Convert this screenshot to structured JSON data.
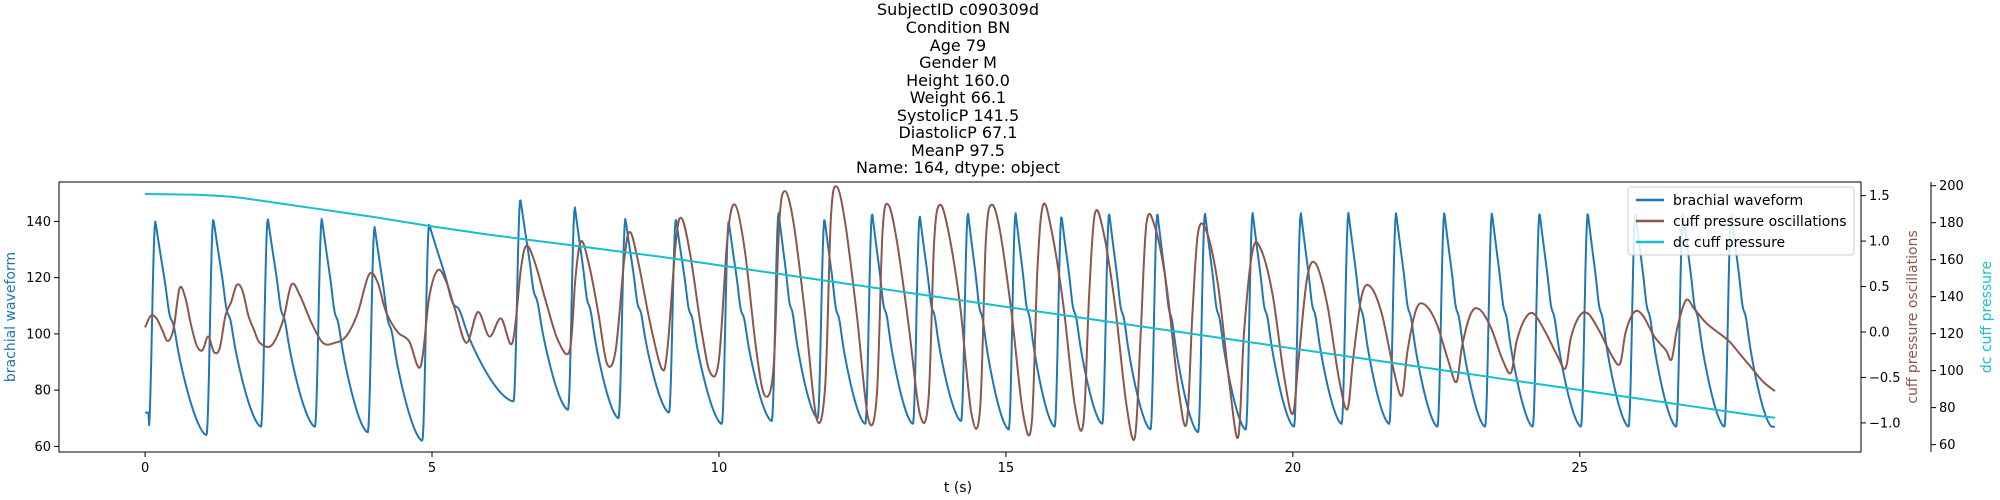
{
  "chart_data": {
    "type": "line",
    "title_lines": [
      "SubjectID     c090309d",
      "Condition            BN",
      "Age                  79",
      "Gender                M",
      "Height            160.0",
      "Weight             66.1",
      "SystolicP         141.5",
      "DiastolicP         67.1",
      "MeanP              97.5",
      "Name: 164, dtype: object"
    ],
    "xlabel": "t (s)",
    "xlim": [
      -1.5,
      29.9
    ],
    "xticks": [
      0,
      5,
      10,
      15,
      20,
      25
    ],
    "grid": false,
    "legend_position": "top-right",
    "colors": {
      "brachial": "#1f77b4",
      "cuff_osc": "#8c564b",
      "dc_cuff": "#17becf"
    },
    "axes": [
      {
        "id": "left",
        "label": "brachial waveform",
        "ylim": [
          58,
          154
        ],
        "ticks": [
          60,
          80,
          100,
          120,
          140
        ],
        "color": "#1f77b4"
      },
      {
        "id": "right1",
        "label": "cuff pressure oscillations",
        "ylim": [
          -1.32,
          1.65
        ],
        "ticks": [
          -1.0,
          -0.5,
          0.0,
          0.5,
          1.0,
          1.5
        ],
        "color": "#8c564b"
      },
      {
        "id": "right2",
        "label": "dc cuff pressure",
        "ylim": [
          56,
          202
        ],
        "ticks": [
          60,
          80,
          100,
          120,
          140,
          160,
          180,
          200
        ],
        "color": "#17becf"
      }
    ],
    "series": [
      {
        "name": "brachial waveform",
        "axis": "left",
        "color": "#1f77b4",
        "duration": 28.4,
        "beats": [
          {
            "t": 0.06,
            "peak": 140,
            "trough": 66
          },
          {
            "t": 1.07,
            "peak": 141,
            "trough": 64
          },
          {
            "t": 2.02,
            "peak": 141,
            "trough": 67
          },
          {
            "t": 2.96,
            "peak": 141,
            "trough": 67
          },
          {
            "t": 3.88,
            "peak": 138,
            "trough": 65
          },
          {
            "t": 4.83,
            "peak": 139,
            "trough": 62
          },
          {
            "t": 6.42,
            "peak": 148,
            "trough": 76
          },
          {
            "t": 7.37,
            "peak": 145,
            "trough": 73
          },
          {
            "t": 8.25,
            "peak": 141,
            "trough": 70
          },
          {
            "t": 9.13,
            "peak": 141,
            "trough": 72
          },
          {
            "t": 10.05,
            "peak": 140,
            "trough": 68
          },
          {
            "t": 10.92,
            "peak": 143,
            "trough": 69
          },
          {
            "t": 11.72,
            "peak": 141,
            "trough": 70
          },
          {
            "t": 12.55,
            "peak": 143,
            "trough": 68
          },
          {
            "t": 13.38,
            "peak": 142,
            "trough": 68
          },
          {
            "t": 14.22,
            "peak": 143,
            "trough": 69
          },
          {
            "t": 15.05,
            "peak": 143,
            "trough": 66
          },
          {
            "t": 15.85,
            "peak": 142,
            "trough": 67
          },
          {
            "t": 16.68,
            "peak": 143,
            "trough": 68
          },
          {
            "t": 17.52,
            "peak": 143,
            "trough": 66
          },
          {
            "t": 18.35,
            "peak": 143,
            "trough": 65
          },
          {
            "t": 19.18,
            "peak": 143,
            "trough": 66
          },
          {
            "t": 20.02,
            "peak": 143,
            "trough": 67
          },
          {
            "t": 20.85,
            "peak": 143,
            "trough": 68
          },
          {
            "t": 21.68,
            "peak": 143,
            "trough": 68
          },
          {
            "t": 22.52,
            "peak": 143,
            "trough": 67
          },
          {
            "t": 23.35,
            "peak": 143,
            "trough": 67
          },
          {
            "t": 24.18,
            "peak": 143,
            "trough": 67
          },
          {
            "t": 25.02,
            "peak": 143,
            "trough": 67
          },
          {
            "t": 25.85,
            "peak": 143,
            "trough": 67
          },
          {
            "t": 26.68,
            "peak": 143,
            "trough": 67
          },
          {
            "t": 27.52,
            "peak": 143,
            "trough": 67
          }
        ]
      },
      {
        "name": "cuff pressure oscillations",
        "axis": "right1",
        "color": "#8c564b",
        "points": [
          [
            0.0,
            0.05
          ],
          [
            0.1,
            0.18
          ],
          [
            0.2,
            0.15
          ],
          [
            0.3,
            0.02
          ],
          [
            0.4,
            -0.1
          ],
          [
            0.5,
            0.05
          ],
          [
            0.6,
            0.48
          ],
          [
            0.7,
            0.38
          ],
          [
            0.8,
            0.08
          ],
          [
            0.9,
            -0.15
          ],
          [
            1.0,
            -0.2
          ],
          [
            1.1,
            -0.05
          ],
          [
            1.2,
            -0.22
          ],
          [
            1.3,
            -0.18
          ],
          [
            1.4,
            0.18
          ],
          [
            1.5,
            0.33
          ],
          [
            1.6,
            0.52
          ],
          [
            1.7,
            0.45
          ],
          [
            1.8,
            0.18
          ],
          [
            1.9,
            0.02
          ],
          [
            2.0,
            -0.12
          ],
          [
            2.2,
            -0.15
          ],
          [
            2.4,
            0.12
          ],
          [
            2.55,
            0.52
          ],
          [
            2.7,
            0.4
          ],
          [
            2.9,
            0.1
          ],
          [
            3.1,
            -0.12
          ],
          [
            3.3,
            -0.12
          ],
          [
            3.5,
            -0.05
          ],
          [
            3.7,
            0.2
          ],
          [
            3.9,
            0.63
          ],
          [
            4.05,
            0.55
          ],
          [
            4.2,
            0.22
          ],
          [
            4.4,
            0.0
          ],
          [
            4.6,
            -0.1
          ],
          [
            4.8,
            -0.38
          ],
          [
            4.95,
            0.38
          ],
          [
            5.1,
            0.68
          ],
          [
            5.25,
            0.55
          ],
          [
            5.4,
            0.25
          ],
          [
            5.6,
            -0.12
          ],
          [
            5.8,
            0.22
          ],
          [
            6.0,
            -0.05
          ],
          [
            6.2,
            0.15
          ],
          [
            6.4,
            -0.12
          ],
          [
            6.55,
            0.7
          ],
          [
            6.65,
            0.95
          ],
          [
            6.8,
            0.75
          ],
          [
            7.0,
            0.3
          ],
          [
            7.2,
            -0.1
          ],
          [
            7.4,
            -0.2
          ],
          [
            7.5,
            0.6
          ],
          [
            7.6,
            1.0
          ],
          [
            7.75,
            0.7
          ],
          [
            7.9,
            0.2
          ],
          [
            8.05,
            -0.35
          ],
          [
            8.2,
            -0.2
          ],
          [
            8.35,
            0.8
          ],
          [
            8.45,
            1.1
          ],
          [
            8.6,
            0.75
          ],
          [
            8.8,
            0.1
          ],
          [
            9.0,
            -0.4
          ],
          [
            9.1,
            -0.2
          ],
          [
            9.25,
            1.0
          ],
          [
            9.35,
            1.25
          ],
          [
            9.5,
            0.85
          ],
          [
            9.7,
            0.0
          ],
          [
            9.85,
            -0.45
          ],
          [
            10.0,
            -0.3
          ],
          [
            10.15,
            1.05
          ],
          [
            10.28,
            1.4
          ],
          [
            10.45,
            0.9
          ],
          [
            10.65,
            -0.2
          ],
          [
            10.8,
            -0.7
          ],
          [
            10.95,
            -0.4
          ],
          [
            11.05,
            1.2
          ],
          [
            11.15,
            1.55
          ],
          [
            11.3,
            1.2
          ],
          [
            11.5,
            0.2
          ],
          [
            11.7,
            -0.95
          ],
          [
            11.85,
            -0.6
          ],
          [
            11.95,
            1.25
          ],
          [
            12.05,
            1.6
          ],
          [
            12.2,
            1.2
          ],
          [
            12.4,
            0.2
          ],
          [
            12.6,
            -0.95
          ],
          [
            12.75,
            -0.7
          ],
          [
            12.85,
            1.1
          ],
          [
            12.95,
            1.4
          ],
          [
            13.1,
            1.0
          ],
          [
            13.3,
            0.1
          ],
          [
            13.5,
            -0.9
          ],
          [
            13.65,
            -0.75
          ],
          [
            13.75,
            1.0
          ],
          [
            13.85,
            1.4
          ],
          [
            14.0,
            1.1
          ],
          [
            14.2,
            0.3
          ],
          [
            14.4,
            -0.9
          ],
          [
            14.55,
            -0.85
          ],
          [
            14.65,
            1.0
          ],
          [
            14.75,
            1.4
          ],
          [
            14.9,
            1.1
          ],
          [
            15.1,
            0.2
          ],
          [
            15.3,
            -0.9
          ],
          [
            15.45,
            -1.0
          ],
          [
            15.55,
            0.7
          ],
          [
            15.65,
            1.4
          ],
          [
            15.8,
            1.1
          ],
          [
            16.0,
            0.3
          ],
          [
            16.2,
            -0.8
          ],
          [
            16.35,
            -1.0
          ],
          [
            16.45,
            0.4
          ],
          [
            16.55,
            1.3
          ],
          [
            16.7,
            1.1
          ],
          [
            16.9,
            0.3
          ],
          [
            17.1,
            -0.8
          ],
          [
            17.25,
            -1.15
          ],
          [
            17.35,
            0.0
          ],
          [
            17.45,
            1.2
          ],
          [
            17.6,
            1.15
          ],
          [
            17.8,
            0.5
          ],
          [
            18.0,
            -0.6
          ],
          [
            18.15,
            -1.0
          ],
          [
            18.25,
            0.2
          ],
          [
            18.35,
            1.1
          ],
          [
            18.5,
            1.1
          ],
          [
            18.7,
            0.5
          ],
          [
            18.9,
            -0.6
          ],
          [
            19.05,
            -1.15
          ],
          [
            19.15,
            0.0
          ],
          [
            19.3,
            0.9
          ],
          [
            19.45,
            0.9
          ],
          [
            19.65,
            0.4
          ],
          [
            19.85,
            -0.5
          ],
          [
            20.0,
            -0.9
          ],
          [
            20.1,
            -0.3
          ],
          [
            20.25,
            0.6
          ],
          [
            20.4,
            0.75
          ],
          [
            20.6,
            0.3
          ],
          [
            20.8,
            -0.5
          ],
          [
            20.95,
            -0.85
          ],
          [
            21.05,
            -0.3
          ],
          [
            21.2,
            0.4
          ],
          [
            21.35,
            0.5
          ],
          [
            21.55,
            0.2
          ],
          [
            21.75,
            -0.4
          ],
          [
            21.9,
            -0.7
          ],
          [
            22.0,
            -0.2
          ],
          [
            22.15,
            0.25
          ],
          [
            22.3,
            0.3
          ],
          [
            22.5,
            0.1
          ],
          [
            22.7,
            -0.3
          ],
          [
            22.85,
            -0.55
          ],
          [
            22.95,
            -0.15
          ],
          [
            23.1,
            0.2
          ],
          [
            23.25,
            0.25
          ],
          [
            23.45,
            0.05
          ],
          [
            23.65,
            -0.3
          ],
          [
            23.8,
            -0.45
          ],
          [
            23.9,
            -0.1
          ],
          [
            24.05,
            0.15
          ],
          [
            24.2,
            0.2
          ],
          [
            24.4,
            0.0
          ],
          [
            24.6,
            -0.25
          ],
          [
            24.75,
            -0.4
          ],
          [
            24.85,
            -0.05
          ],
          [
            25.0,
            0.18
          ],
          [
            25.15,
            0.2
          ],
          [
            25.35,
            0.0
          ],
          [
            25.55,
            -0.25
          ],
          [
            25.7,
            -0.35
          ],
          [
            25.8,
            0.0
          ],
          [
            25.95,
            0.22
          ],
          [
            26.1,
            0.18
          ],
          [
            26.3,
            -0.05
          ],
          [
            26.5,
            -0.2
          ],
          [
            26.6,
            -0.3
          ],
          [
            26.7,
            0.05
          ],
          [
            26.85,
            0.35
          ],
          [
            27.0,
            0.25
          ],
          [
            27.2,
            0.1
          ],
          [
            27.4,
            0.0
          ],
          [
            27.6,
            -0.1
          ],
          [
            27.8,
            -0.25
          ],
          [
            28.0,
            -0.4
          ],
          [
            28.2,
            -0.55
          ],
          [
            28.4,
            -0.65
          ]
        ]
      },
      {
        "name": "dc cuff pressure",
        "axis": "right2",
        "color": "#17becf",
        "points": [
          [
            0.0,
            195.5
          ],
          [
            1.0,
            195.0
          ],
          [
            1.5,
            194.0
          ],
          [
            2.0,
            192.0
          ],
          [
            3.0,
            187.5
          ],
          [
            4.0,
            183.0
          ],
          [
            5.0,
            178.0
          ],
          [
            6.0,
            173.5
          ],
          [
            7.0,
            169.5
          ],
          [
            8.0,
            165.5
          ],
          [
            9.0,
            161.5
          ],
          [
            10.0,
            157.0
          ],
          [
            11.0,
            152.5
          ],
          [
            12.0,
            148.0
          ],
          [
            13.0,
            143.5
          ],
          [
            14.0,
            139.0
          ],
          [
            15.0,
            134.5
          ],
          [
            16.0,
            130.0
          ],
          [
            17.0,
            125.5
          ],
          [
            18.0,
            121.0
          ],
          [
            19.0,
            116.5
          ],
          [
            20.0,
            112.0
          ],
          [
            21.0,
            107.5
          ],
          [
            22.0,
            103.0
          ],
          [
            23.0,
            98.5
          ],
          [
            24.0,
            94.0
          ],
          [
            25.0,
            89.5
          ],
          [
            26.0,
            85.0
          ],
          [
            27.0,
            80.5
          ],
          [
            28.0,
            76.0
          ],
          [
            28.4,
            74.5
          ]
        ]
      }
    ]
  }
}
